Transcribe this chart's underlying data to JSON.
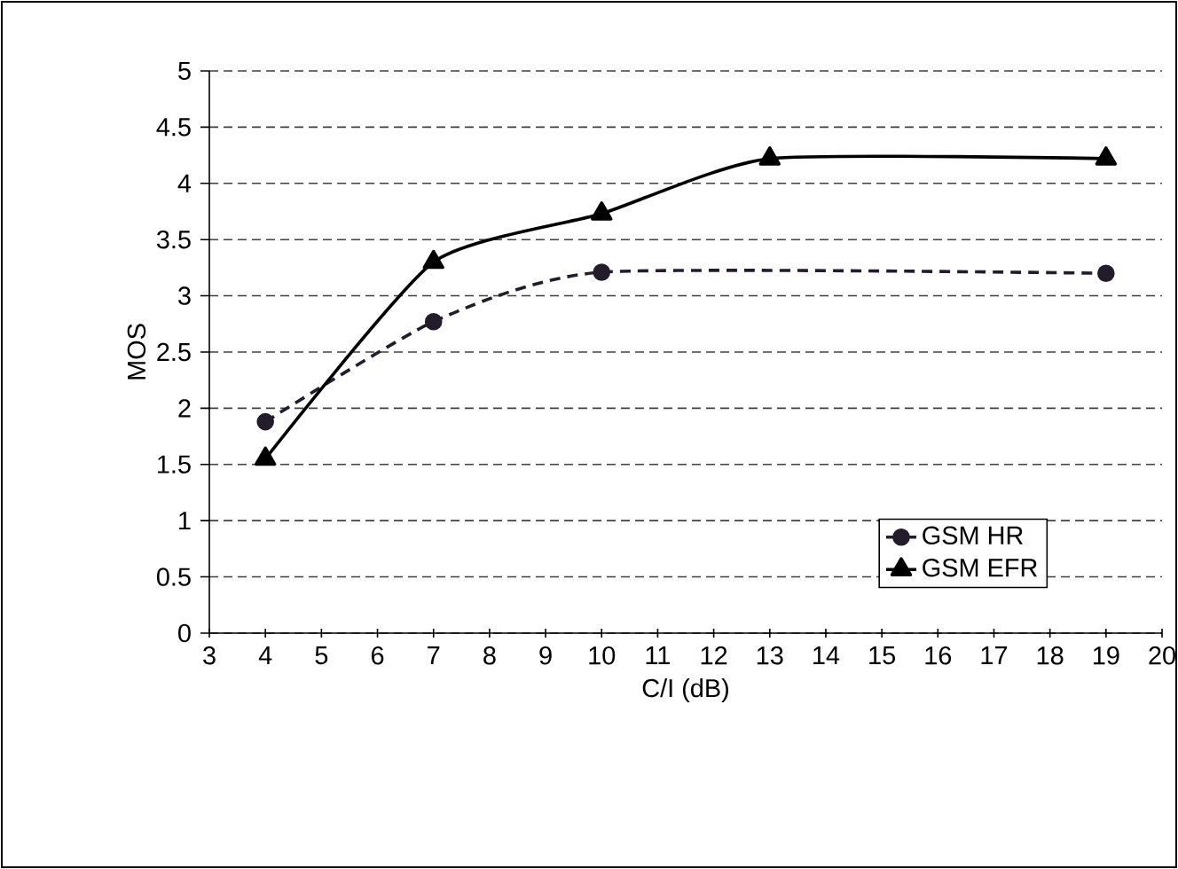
{
  "chart_data": {
    "type": "line",
    "xlabel": "C/I (dB)",
    "ylabel": "MOS",
    "series": [
      {
        "name": "GSM HR",
        "color": "#231c2a",
        "x": [
          4,
          7,
          10,
          19
        ],
        "values": [
          1.88,
          2.77,
          3.21,
          3.2
        ],
        "marker": "circle",
        "line_style": "dashed"
      },
      {
        "name": "GSM EFR",
        "color": "#000000",
        "x": [
          4,
          7,
          10,
          13,
          19
        ],
        "values": [
          1.55,
          3.3,
          3.73,
          4.22,
          4.22
        ],
        "marker": "triangle",
        "line_style": "solid"
      }
    ],
    "xlim": [
      3,
      20
    ],
    "xticks": [
      3,
      4,
      5,
      6,
      7,
      8,
      9,
      10,
      11,
      12,
      13,
      14,
      15,
      16,
      17,
      18,
      19,
      20
    ],
    "ylim": [
      0,
      5
    ],
    "yticks": [
      0,
      0.5,
      1,
      1.5,
      2,
      2.5,
      3,
      3.5,
      4,
      4.5,
      5
    ],
    "grid": "y",
    "legend": "bottom right"
  }
}
